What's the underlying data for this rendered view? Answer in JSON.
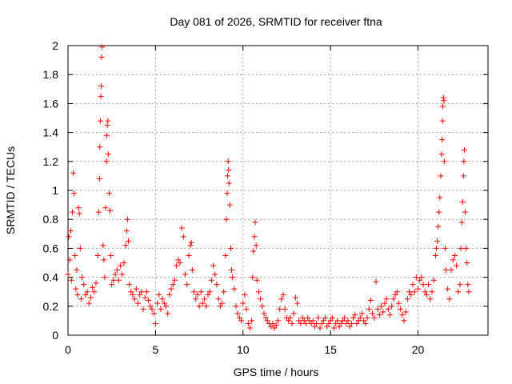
{
  "chart_data": {
    "type": "scatter",
    "title": "Day 081 of 2026, SRMTID for receiver ftna",
    "xlabel": "GPS time / hours",
    "ylabel": "SRMTID / TECUs",
    "xlim": [
      0,
      24
    ],
    "ylim": [
      0,
      2
    ],
    "xticks": [
      0,
      5,
      10,
      15,
      20
    ],
    "xtick_labels": [
      "0",
      "5",
      "10",
      "15",
      "20"
    ],
    "yticks": [
      0,
      0.2,
      0.4,
      0.6,
      0.8,
      1,
      1.2,
      1.4,
      1.6,
      1.8,
      2
    ],
    "ytick_labels": [
      "0",
      "0.2",
      "0.4",
      "0.6",
      "0.8",
      "1",
      "1.2",
      "1.4",
      "1.6",
      "1.8",
      "2"
    ],
    "grid": true,
    "marker": "+",
    "marker_color": "#ff0000",
    "series": [
      {
        "name": "SRMTID",
        "points": [
          [
            0.0,
            0.42
          ],
          [
            0.05,
            0.68
          ],
          [
            0.1,
            0.52
          ],
          [
            0.15,
            0.72
          ],
          [
            0.2,
            0.38
          ],
          [
            0.25,
            0.85
          ],
          [
            0.3,
            1.12
          ],
          [
            0.35,
            0.98
          ],
          [
            0.4,
            0.55
          ],
          [
            0.45,
            0.32
          ],
          [
            0.5,
            0.45
          ],
          [
            0.55,
            0.28
          ],
          [
            0.6,
            0.88
          ],
          [
            0.65,
            0.84
          ],
          [
            0.7,
            0.6
          ],
          [
            0.75,
            0.25
          ],
          [
            0.8,
            0.4
          ],
          [
            0.9,
            0.35
          ],
          [
            1.0,
            0.28
          ],
          [
            1.1,
            0.3
          ],
          [
            1.2,
            0.22
          ],
          [
            1.3,
            0.26
          ],
          [
            1.4,
            0.33
          ],
          [
            1.5,
            0.3
          ],
          [
            1.6,
            0.36
          ],
          [
            1.7,
            0.55
          ],
          [
            1.75,
            0.85
          ],
          [
            1.8,
            1.08
          ],
          [
            1.82,
            1.3
          ],
          [
            1.85,
            1.48
          ],
          [
            1.88,
            1.65
          ],
          [
            1.9,
            1.72
          ],
          [
            1.92,
            1.92
          ],
          [
            1.95,
            1.99
          ],
          [
            2.0,
            0.62
          ],
          [
            2.05,
            0.52
          ],
          [
            2.1,
            0.4
          ],
          [
            2.15,
            0.88
          ],
          [
            2.2,
            1.2
          ],
          [
            2.22,
            1.38
          ],
          [
            2.25,
            1.45
          ],
          [
            2.28,
            1.48
          ],
          [
            2.3,
            1.25
          ],
          [
            2.35,
            0.98
          ],
          [
            2.4,
            0.86
          ],
          [
            2.45,
            0.55
          ],
          [
            2.5,
            0.35
          ],
          [
            2.6,
            0.38
          ],
          [
            2.7,
            0.42
          ],
          [
            2.8,
            0.45
          ],
          [
            2.9,
            0.38
          ],
          [
            3.0,
            0.48
          ],
          [
            3.1,
            0.42
          ],
          [
            3.2,
            0.5
          ],
          [
            3.3,
            0.62
          ],
          [
            3.35,
            0.72
          ],
          [
            3.4,
            0.8
          ],
          [
            3.45,
            0.65
          ],
          [
            3.5,
            0.35
          ],
          [
            3.6,
            0.3
          ],
          [
            3.7,
            0.28
          ],
          [
            3.8,
            0.25
          ],
          [
            3.9,
            0.32
          ],
          [
            4.0,
            0.22
          ],
          [
            4.1,
            0.28
          ],
          [
            4.2,
            0.3
          ],
          [
            4.3,
            0.18
          ],
          [
            4.4,
            0.26
          ],
          [
            4.5,
            0.3
          ],
          [
            4.6,
            0.24
          ],
          [
            4.7,
            0.2
          ],
          [
            4.8,
            0.18
          ],
          [
            4.9,
            0.15
          ],
          [
            5.0,
            0.08
          ],
          [
            5.1,
            0.22
          ],
          [
            5.2,
            0.28
          ],
          [
            5.3,
            0.18
          ],
          [
            5.4,
            0.25
          ],
          [
            5.5,
            0.22
          ],
          [
            5.6,
            0.2
          ],
          [
            5.7,
            0.15
          ],
          [
            5.8,
            0.28
          ],
          [
            5.9,
            0.32
          ],
          [
            6.0,
            0.35
          ],
          [
            6.1,
            0.38
          ],
          [
            6.2,
            0.48
          ],
          [
            6.3,
            0.52
          ],
          [
            6.4,
            0.5
          ],
          [
            6.5,
            0.74
          ],
          [
            6.6,
            0.68
          ],
          [
            6.7,
            0.42
          ],
          [
            6.8,
            0.35
          ],
          [
            6.9,
            0.55
          ],
          [
            7.0,
            0.62
          ],
          [
            7.05,
            0.64
          ],
          [
            7.1,
            0.45
          ],
          [
            7.2,
            0.3
          ],
          [
            7.3,
            0.25
          ],
          [
            7.4,
            0.28
          ],
          [
            7.5,
            0.2
          ],
          [
            7.6,
            0.3
          ],
          [
            7.7,
            0.22
          ],
          [
            7.8,
            0.25
          ],
          [
            7.9,
            0.2
          ],
          [
            8.0,
            0.28
          ],
          [
            8.1,
            0.3
          ],
          [
            8.2,
            0.38
          ],
          [
            8.3,
            0.48
          ],
          [
            8.4,
            0.42
          ],
          [
            8.5,
            0.35
          ],
          [
            8.6,
            0.25
          ],
          [
            8.7,
            0.2
          ],
          [
            8.8,
            0.22
          ],
          [
            8.9,
            0.3
          ],
          [
            9.0,
            0.55
          ],
          [
            9.05,
            0.8
          ],
          [
            9.1,
            0.98
          ],
          [
            9.12,
            1.1
          ],
          [
            9.15,
            1.2
          ],
          [
            9.18,
            1.14
          ],
          [
            9.2,
            1.05
          ],
          [
            9.25,
            0.9
          ],
          [
            9.3,
            0.6
          ],
          [
            9.35,
            0.45
          ],
          [
            9.4,
            0.4
          ],
          [
            9.5,
            0.32
          ],
          [
            9.6,
            0.2
          ],
          [
            9.7,
            0.15
          ],
          [
            9.8,
            0.12
          ],
          [
            9.9,
            0.1
          ],
          [
            10.0,
            0.22
          ],
          [
            10.1,
            0.28
          ],
          [
            10.2,
            0.18
          ],
          [
            10.3,
            0.08
          ],
          [
            10.4,
            0.05
          ],
          [
            10.5,
            0.1
          ],
          [
            10.55,
            0.4
          ],
          [
            10.6,
            0.58
          ],
          [
            10.65,
            0.68
          ],
          [
            10.7,
            0.78
          ],
          [
            10.75,
            0.62
          ],
          [
            10.8,
            0.38
          ],
          [
            10.9,
            0.3
          ],
          [
            11.0,
            0.25
          ],
          [
            11.1,
            0.2
          ],
          [
            11.2,
            0.15
          ],
          [
            11.3,
            0.12
          ],
          [
            11.4,
            0.1
          ],
          [
            11.5,
            0.08
          ],
          [
            11.6,
            0.06
          ],
          [
            11.7,
            0.08
          ],
          [
            11.8,
            0.05
          ],
          [
            11.9,
            0.07
          ],
          [
            12.0,
            0.1
          ],
          [
            12.1,
            0.18
          ],
          [
            12.2,
            0.25
          ],
          [
            12.3,
            0.28
          ],
          [
            12.4,
            0.18
          ],
          [
            12.5,
            0.12
          ],
          [
            12.6,
            0.1
          ],
          [
            12.7,
            0.12
          ],
          [
            12.8,
            0.08
          ],
          [
            12.9,
            0.15
          ],
          [
            13.0,
            0.26
          ],
          [
            13.1,
            0.22
          ],
          [
            13.2,
            0.1
          ],
          [
            13.3,
            0.08
          ],
          [
            13.4,
            0.12
          ],
          [
            13.5,
            0.1
          ],
          [
            13.6,
            0.08
          ],
          [
            13.7,
            0.12
          ],
          [
            13.8,
            0.1
          ],
          [
            13.9,
            0.08
          ],
          [
            14.0,
            0.1
          ],
          [
            14.1,
            0.06
          ],
          [
            14.2,
            0.08
          ],
          [
            14.3,
            0.12
          ],
          [
            14.4,
            0.05
          ],
          [
            14.5,
            0.08
          ],
          [
            14.6,
            0.1
          ],
          [
            14.7,
            0.12
          ],
          [
            14.8,
            0.06
          ],
          [
            14.9,
            0.08
          ],
          [
            15.0,
            0.1
          ],
          [
            15.1,
            0.12
          ],
          [
            15.2,
            0.05
          ],
          [
            15.3,
            0.08
          ],
          [
            15.4,
            0.1
          ],
          [
            15.5,
            0.06
          ],
          [
            15.6,
            0.08
          ],
          [
            15.7,
            0.1
          ],
          [
            15.8,
            0.12
          ],
          [
            15.9,
            0.08
          ],
          [
            16.0,
            0.1
          ],
          [
            16.1,
            0.06
          ],
          [
            16.2,
            0.08
          ],
          [
            16.3,
            0.12
          ],
          [
            16.4,
            0.14
          ],
          [
            16.5,
            0.08
          ],
          [
            16.6,
            0.1
          ],
          [
            16.7,
            0.12
          ],
          [
            16.8,
            0.15
          ],
          [
            16.9,
            0.1
          ],
          [
            17.0,
            0.08
          ],
          [
            17.1,
            0.12
          ],
          [
            17.2,
            0.18
          ],
          [
            17.3,
            0.24
          ],
          [
            17.4,
            0.15
          ],
          [
            17.5,
            0.12
          ],
          [
            17.6,
            0.37
          ],
          [
            17.7,
            0.18
          ],
          [
            17.8,
            0.14
          ],
          [
            17.9,
            0.2
          ],
          [
            18.0,
            0.16
          ],
          [
            18.1,
            0.22
          ],
          [
            18.2,
            0.25
          ],
          [
            18.3,
            0.18
          ],
          [
            18.4,
            0.14
          ],
          [
            18.5,
            0.2
          ],
          [
            18.6,
            0.25
          ],
          [
            18.7,
            0.28
          ],
          [
            18.8,
            0.3
          ],
          [
            18.9,
            0.22
          ],
          [
            19.0,
            0.18
          ],
          [
            19.1,
            0.14
          ],
          [
            19.2,
            0.1
          ],
          [
            19.3,
            0.16
          ],
          [
            19.4,
            0.25
          ],
          [
            19.5,
            0.3
          ],
          [
            19.6,
            0.28
          ],
          [
            19.7,
            0.35
          ],
          [
            19.8,
            0.3
          ],
          [
            19.9,
            0.4
          ],
          [
            20.0,
            0.32
          ],
          [
            20.1,
            0.38
          ],
          [
            20.2,
            0.4
          ],
          [
            20.3,
            0.35
          ],
          [
            20.4,
            0.3
          ],
          [
            20.5,
            0.28
          ],
          [
            20.6,
            0.35
          ],
          [
            20.7,
            0.25
          ],
          [
            20.8,
            0.3
          ],
          [
            20.9,
            0.38
          ],
          [
            21.0,
            0.55
          ],
          [
            21.05,
            0.6
          ],
          [
            21.1,
            0.65
          ],
          [
            21.15,
            0.75
          ],
          [
            21.2,
            0.85
          ],
          [
            21.25,
            0.95
          ],
          [
            21.3,
            1.1
          ],
          [
            21.35,
            1.25
          ],
          [
            21.38,
            1.35
          ],
          [
            21.4,
            1.48
          ],
          [
            21.42,
            1.58
          ],
          [
            21.45,
            1.64
          ],
          [
            21.48,
            1.62
          ],
          [
            21.5,
            1.2
          ],
          [
            21.55,
            0.6
          ],
          [
            21.6,
            0.45
          ],
          [
            21.7,
            0.32
          ],
          [
            21.8,
            0.25
          ],
          [
            21.9,
            0.45
          ],
          [
            22.0,
            0.52
          ],
          [
            22.1,
            0.55
          ],
          [
            22.2,
            0.48
          ],
          [
            22.3,
            0.3
          ],
          [
            22.4,
            0.35
          ],
          [
            22.45,
            0.6
          ],
          [
            22.5,
            0.78
          ],
          [
            22.55,
            0.92
          ],
          [
            22.6,
            1.1
          ],
          [
            22.62,
            1.2
          ],
          [
            22.65,
            1.28
          ],
          [
            22.7,
            0.85
          ],
          [
            22.75,
            0.6
          ],
          [
            22.8,
            0.5
          ],
          [
            22.85,
            0.35
          ],
          [
            22.9,
            0.3
          ]
        ]
      }
    ]
  }
}
